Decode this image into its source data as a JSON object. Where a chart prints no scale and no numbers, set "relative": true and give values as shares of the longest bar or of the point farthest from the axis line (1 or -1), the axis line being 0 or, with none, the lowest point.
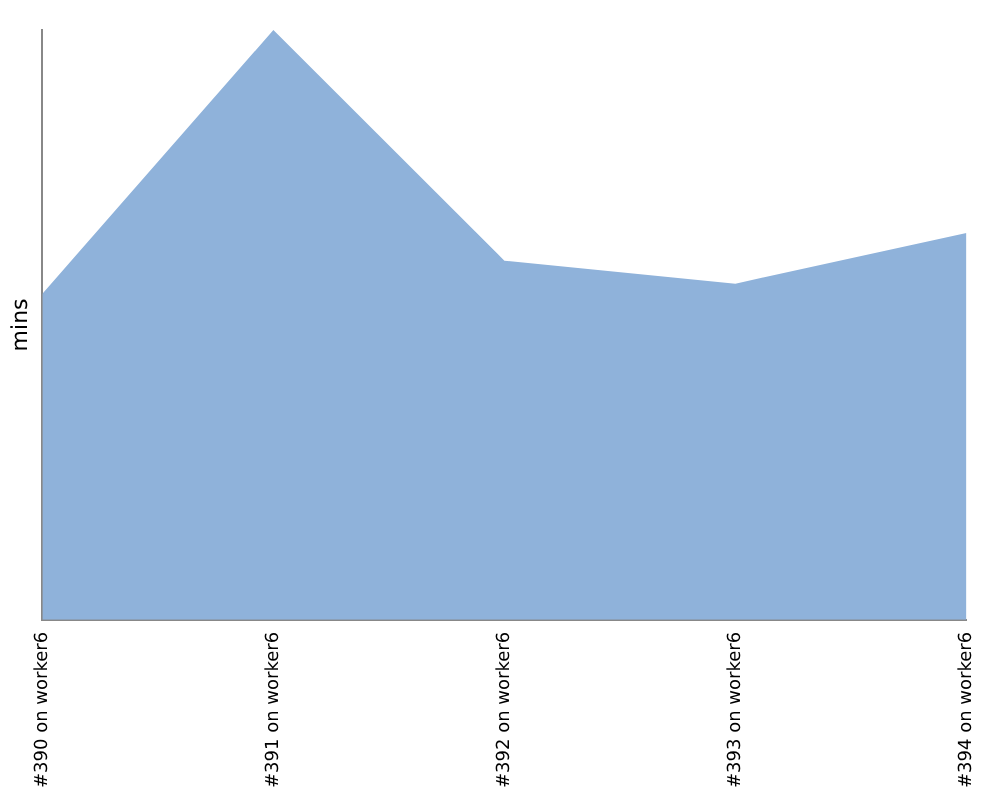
{
  "chart_data": {
    "type": "area",
    "ylabel": "mins",
    "relative": true,
    "categories": [
      "#390 on worker6",
      "#391 on worker6",
      "#392 on worker6",
      "#393 on worker6",
      "#394 on worker6"
    ],
    "series": [
      {
        "color": "#8fb2da",
        "values": [
          0.553,
          1,
          0.609,
          0.57,
          0.656
        ]
      }
    ],
    "grid": false,
    "legend": false
  }
}
